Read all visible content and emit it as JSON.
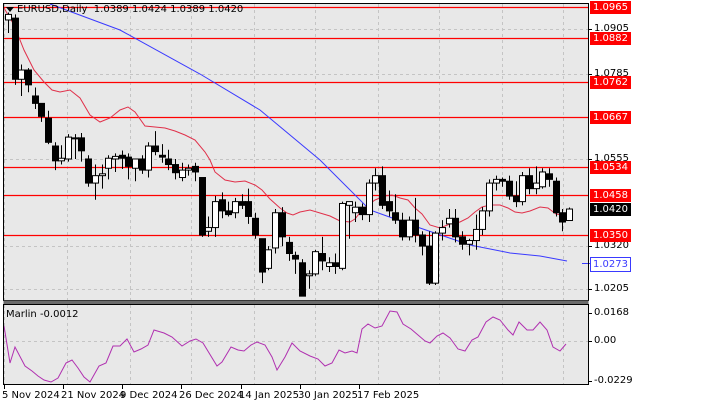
{
  "window": {
    "symbol": "EURUSD",
    "timeframe": "Daily",
    "title": "EURUSD,Daily",
    "ohlc": {
      "open": "1.0389",
      "high": "1.0424",
      "low": "1.0389",
      "close": "1.0420"
    },
    "ohlc_text": "1.0389 1.0424 1.0389 1.0420"
  },
  "colors": {
    "background": "#e8e8e8",
    "grid": "#c4c4c4",
    "level_line": "#ff0000",
    "level_label_bg": "#ff0000",
    "current_price_bg": "#000000",
    "ma_fast": "#e0304a",
    "ma_slow": "#3a3aff",
    "oscillator": "#b030b0",
    "bull_body": "#ffffff",
    "bear_body": "#000000"
  },
  "price_scale": {
    "ticks": [
      "1.0905",
      "1.0785",
      "1.0555",
      "1.0320",
      "1.0205"
    ],
    "levels": [
      {
        "value": "1.0965"
      },
      {
        "value": "1.0882"
      },
      {
        "value": "1.0762"
      },
      {
        "value": "1.0667"
      },
      {
        "value": "1.0534"
      },
      {
        "value": "1.0458"
      },
      {
        "value": "1.0350"
      }
    ],
    "current_price": "1.0420",
    "ma_label": "1.0273"
  },
  "indicator": {
    "name": "Marlin",
    "value": "-0.0012",
    "title": "Marlin -0.0012",
    "scale_ticks": [
      "0.0168",
      "0.00",
      "-0.0229"
    ]
  },
  "time_axis": {
    "labels": [
      "5 Nov 2024",
      "21 Nov 2024",
      "9 Dec 2024",
      "26 Dec 2024",
      "14 Jan 2025",
      "30 Jan 2025",
      "17 Feb 2025"
    ]
  },
  "chart_data": [
    {
      "type": "candlestick",
      "title": "EURUSD,Daily",
      "xlabel": "",
      "ylabel": "",
      "ylim": [
        1.0175,
        1.0985
      ],
      "x_tick_labels": [
        "5 Nov 2024",
        "21 Nov 2024",
        "9 Dec 2024",
        "26 Dec 2024",
        "14 Jan 2025",
        "30 Jan 2025",
        "17 Feb 2025"
      ],
      "y_tick_labels": [
        "1.0905",
        "1.0785",
        "1.0555",
        "1.0320",
        "1.0205"
      ],
      "horizontal_levels": [
        1.0965,
        1.0882,
        1.0762,
        1.0667,
        1.0534,
        1.0458,
        1.035
      ],
      "last_price": 1.042,
      "last_ohlc": {
        "open": 1.0389,
        "high": 1.0424,
        "low": 1.0389,
        "close": 1.042
      },
      "candles": [
        {
          "o": 1.093,
          "h": 1.095,
          "l": 1.0895,
          "c": 1.0945
        },
        {
          "o": 1.0935,
          "h": 1.0945,
          "l": 1.0755,
          "c": 1.077
        },
        {
          "o": 1.077,
          "h": 1.081,
          "l": 1.0725,
          "c": 1.0795
        },
        {
          "o": 1.0795,
          "h": 1.08,
          "l": 1.0735,
          "c": 1.0755
        },
        {
          "o": 1.0725,
          "h": 1.0748,
          "l": 1.069,
          "c": 1.0705
        },
        {
          "o": 1.0705,
          "h": 1.0705,
          "l": 1.0655,
          "c": 1.067
        },
        {
          "o": 1.0665,
          "h": 1.0685,
          "l": 1.0595,
          "c": 1.06
        },
        {
          "o": 1.059,
          "h": 1.06,
          "l": 1.0525,
          "c": 1.055
        },
        {
          "o": 1.055,
          "h": 1.0592,
          "l": 1.054,
          "c": 1.0557
        },
        {
          "o": 1.0555,
          "h": 1.0622,
          "l": 1.0548,
          "c": 1.0614
        },
        {
          "o": 1.0612,
          "h": 1.0622,
          "l": 1.0555,
          "c": 1.0612
        },
        {
          "o": 1.0612,
          "h": 1.0625,
          "l": 1.0548,
          "c": 1.0577
        },
        {
          "o": 1.0555,
          "h": 1.0565,
          "l": 1.048,
          "c": 1.049
        },
        {
          "o": 1.049,
          "h": 1.054,
          "l": 1.0445,
          "c": 1.051
        },
        {
          "o": 1.051,
          "h": 1.054,
          "l": 1.0475,
          "c": 1.0515
        },
        {
          "o": 1.053,
          "h": 1.0565,
          "l": 1.05,
          "c": 1.0557
        },
        {
          "o": 1.0555,
          "h": 1.057,
          "l": 1.052,
          "c": 1.0562
        },
        {
          "o": 1.0565,
          "h": 1.0578,
          "l": 1.0528,
          "c": 1.0557
        },
        {
          "o": 1.056,
          "h": 1.057,
          "l": 1.05,
          "c": 1.0535
        },
        {
          "o": 1.053,
          "h": 1.0555,
          "l": 1.0495,
          "c": 1.0555
        },
        {
          "o": 1.0555,
          "h": 1.0565,
          "l": 1.0515,
          "c": 1.0525
        },
        {
          "o": 1.0525,
          "h": 1.06,
          "l": 1.0505,
          "c": 1.059
        },
        {
          "o": 1.059,
          "h": 1.063,
          "l": 1.0565,
          "c": 1.0575
        },
        {
          "o": 1.0565,
          "h": 1.0595,
          "l": 1.0545,
          "c": 1.056
        },
        {
          "o": 1.0555,
          "h": 1.058,
          "l": 1.0525,
          "c": 1.054
        },
        {
          "o": 1.054,
          "h": 1.0555,
          "l": 1.05,
          "c": 1.0518
        },
        {
          "o": 1.0505,
          "h": 1.0545,
          "l": 1.0495,
          "c": 1.0525
        },
        {
          "o": 1.0525,
          "h": 1.054,
          "l": 1.051,
          "c": 1.053
        },
        {
          "o": 1.0535,
          "h": 1.0545,
          "l": 1.0495,
          "c": 1.052
        },
        {
          "o": 1.0505,
          "h": 1.0505,
          "l": 1.0345,
          "c": 1.035
        },
        {
          "o": 1.036,
          "h": 1.04,
          "l": 1.0345,
          "c": 1.037
        },
        {
          "o": 1.037,
          "h": 1.0455,
          "l": 1.0345,
          "c": 1.044
        },
        {
          "o": 1.0445,
          "h": 1.0465,
          "l": 1.0395,
          "c": 1.0415
        },
        {
          "o": 1.0415,
          "h": 1.044,
          "l": 1.04,
          "c": 1.0405
        },
        {
          "o": 1.041,
          "h": 1.045,
          "l": 1.0395,
          "c": 1.044
        },
        {
          "o": 1.044,
          "h": 1.046,
          "l": 1.042,
          "c": 1.043
        },
        {
          "o": 1.044,
          "h": 1.0475,
          "l": 1.038,
          "c": 1.04
        },
        {
          "o": 1.0395,
          "h": 1.041,
          "l": 1.034,
          "c": 1.035
        },
        {
          "o": 1.034,
          "h": 1.034,
          "l": 1.022,
          "c": 1.025
        },
        {
          "o": 1.026,
          "h": 1.032,
          "l": 1.0255,
          "c": 1.031
        },
        {
          "o": 1.0315,
          "h": 1.042,
          "l": 1.03,
          "c": 1.041
        },
        {
          "o": 1.041,
          "h": 1.0425,
          "l": 1.032,
          "c": 1.0345
        },
        {
          "o": 1.033,
          "h": 1.0345,
          "l": 1.028,
          "c": 1.03
        },
        {
          "o": 1.0295,
          "h": 1.0305,
          "l": 1.0245,
          "c": 1.0285
        },
        {
          "o": 1.0275,
          "h": 1.0285,
          "l": 1.0185,
          "c": 1.0185
        },
        {
          "o": 1.024,
          "h": 1.0255,
          "l": 1.0205,
          "c": 1.0245
        },
        {
          "o": 1.0245,
          "h": 1.031,
          "l": 1.024,
          "c": 1.0305
        },
        {
          "o": 1.03,
          "h": 1.0345,
          "l": 1.0255,
          "c": 1.028
        },
        {
          "o": 1.0265,
          "h": 1.029,
          "l": 1.025,
          "c": 1.0275
        },
        {
          "o": 1.0275,
          "h": 1.03,
          "l": 1.0245,
          "c": 1.0265
        },
        {
          "o": 1.026,
          "h": 1.044,
          "l": 1.0255,
          "c": 1.0435
        },
        {
          "o": 1.043,
          "h": 1.044,
          "l": 1.034,
          "c": 1.044
        },
        {
          "o": 1.041,
          "h": 1.044,
          "l": 1.0385,
          "c": 1.0425
        },
        {
          "o": 1.0425,
          "h": 1.0435,
          "l": 1.039,
          "c": 1.0405
        },
        {
          "o": 1.0405,
          "h": 1.05,
          "l": 1.0385,
          "c": 1.049
        },
        {
          "o": 1.049,
          "h": 1.053,
          "l": 1.047,
          "c": 1.051
        },
        {
          "o": 1.051,
          "h": 1.0535,
          "l": 1.042,
          "c": 1.043
        },
        {
          "o": 1.044,
          "h": 1.047,
          "l": 1.04,
          "c": 1.0415
        },
        {
          "o": 1.041,
          "h": 1.046,
          "l": 1.038,
          "c": 1.039
        },
        {
          "o": 1.039,
          "h": 1.041,
          "l": 1.0335,
          "c": 1.0345
        },
        {
          "o": 1.0345,
          "h": 1.04,
          "l": 1.0335,
          "c": 1.039
        },
        {
          "o": 1.039,
          "h": 1.045,
          "l": 1.033,
          "c": 1.035
        },
        {
          "o": 1.035,
          "h": 1.036,
          "l": 1.0295,
          "c": 1.032
        },
        {
          "o": 1.032,
          "h": 1.036,
          "l": 1.0215,
          "c": 1.022
        },
        {
          "o": 1.022,
          "h": 1.036,
          "l": 1.0215,
          "c": 1.0355
        },
        {
          "o": 1.0355,
          "h": 1.039,
          "l": 1.0335,
          "c": 1.037
        },
        {
          "o": 1.038,
          "h": 1.042,
          "l": 1.037,
          "c": 1.0395
        },
        {
          "o": 1.0395,
          "h": 1.042,
          "l": 1.033,
          "c": 1.0345
        },
        {
          "o": 1.0345,
          "h": 1.036,
          "l": 1.031,
          "c": 1.0325
        },
        {
          "o": 1.0325,
          "h": 1.034,
          "l": 1.0295,
          "c": 1.0335
        },
        {
          "o": 1.0335,
          "h": 1.0405,
          "l": 1.031,
          "c": 1.0365
        },
        {
          "o": 1.0365,
          "h": 1.0425,
          "l": 1.035,
          "c": 1.0415
        },
        {
          "o": 1.0415,
          "h": 1.05,
          "l": 1.04,
          "c": 1.049
        },
        {
          "o": 1.049,
          "h": 1.051,
          "l": 1.047,
          "c": 1.05
        },
        {
          "o": 1.05,
          "h": 1.0505,
          "l": 1.048,
          "c": 1.0495
        },
        {
          "o": 1.0495,
          "h": 1.051,
          "l": 1.0445,
          "c": 1.0455
        },
        {
          "o": 1.0455,
          "h": 1.0495,
          "l": 1.0425,
          "c": 1.044
        },
        {
          "o": 1.044,
          "h": 1.052,
          "l": 1.043,
          "c": 1.051
        },
        {
          "o": 1.051,
          "h": 1.053,
          "l": 1.046,
          "c": 1.0475
        },
        {
          "o": 1.0475,
          "h": 1.0535,
          "l": 1.046,
          "c": 1.049
        },
        {
          "o": 1.048,
          "h": 1.053,
          "l": 1.0475,
          "c": 1.052
        },
        {
          "o": 1.0515,
          "h": 1.053,
          "l": 1.048,
          "c": 1.05
        },
        {
          "o": 1.0495,
          "h": 1.0505,
          "l": 1.04,
          "c": 1.041
        },
        {
          "o": 1.041,
          "h": 1.042,
          "l": 1.036,
          "c": 1.0385
        },
        {
          "o": 1.0389,
          "h": 1.0424,
          "l": 1.0389,
          "c": 1.042
        }
      ],
      "series": [
        {
          "name": "MA fast (red)",
          "values_px_note": "smoothed moving average",
          "last_value_near": 1.0395
        },
        {
          "name": "MA slow (blue)",
          "last_value": 1.0273
        }
      ]
    },
    {
      "type": "line",
      "title": "Marlin -0.0012",
      "ylim": [
        -0.0229,
        0.0168
      ],
      "y_tick_labels": [
        "0.0168",
        "0.00",
        "-0.0229"
      ],
      "series": [
        {
          "name": "Marlin",
          "last_value": -0.0012
        }
      ]
    }
  ]
}
